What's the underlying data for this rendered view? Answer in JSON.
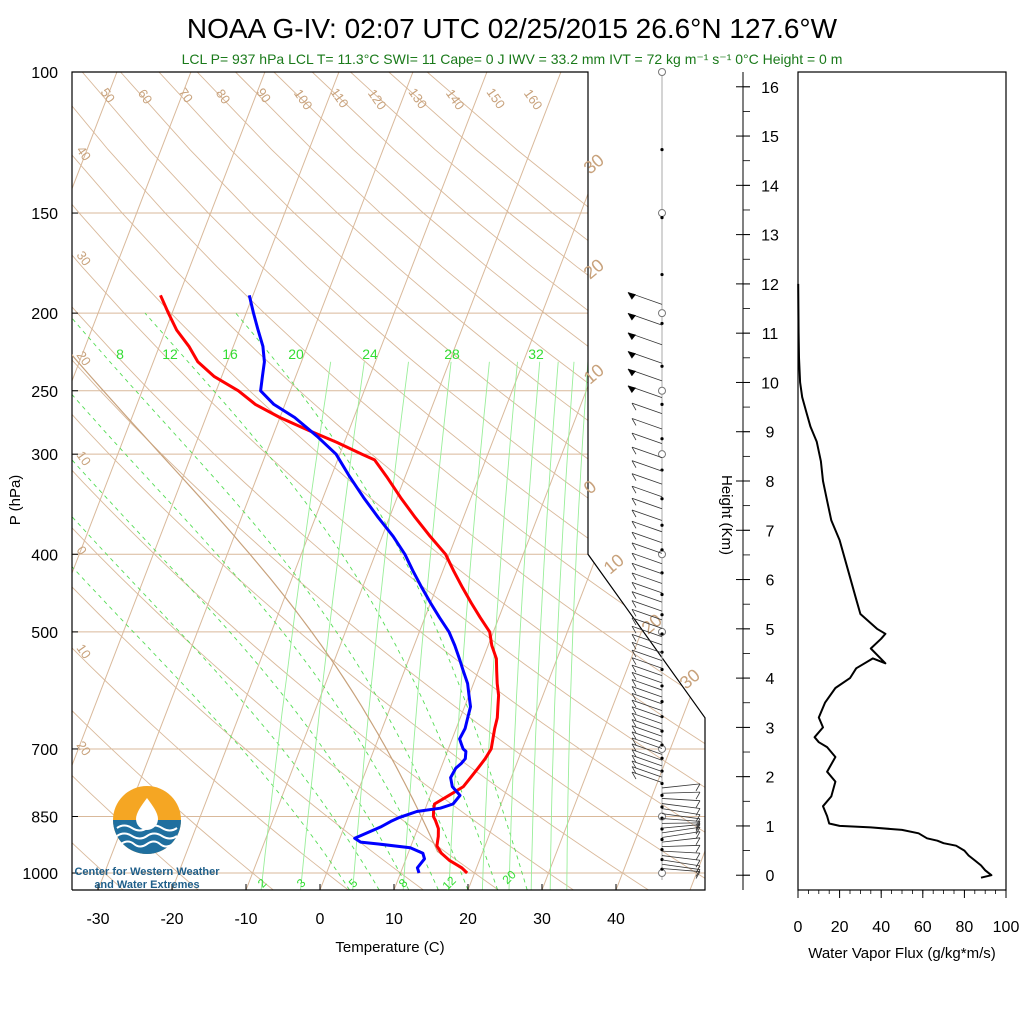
{
  "header": {
    "title": "NOAA G-IV: 02:07 UTC 02/25/2015  26.6°N 127.6°W",
    "subtitle": "LCL P= 937 hPa  LCL T= 11.3°C  SWI= 11  Cape= 0 J  IWV = 33.2 mm  IVT = 72 kg m⁻¹ s⁻¹  0°C Height = 0 m"
  },
  "logo": {
    "line1": "Center for Western Weather",
    "line2": "and Water Extremes",
    "colors": {
      "sun": "#f5a623",
      "water": "#1f6f9f"
    }
  },
  "chart_data": [
    {
      "type": "line",
      "name": "skew-t",
      "xlabel": "Temperature (C)",
      "ylabel": "P (hPa)",
      "x_ticks": [
        -30,
        -20,
        -10,
        0,
        10,
        20,
        30,
        40
      ],
      "y_ticks": [
        100,
        150,
        200,
        250,
        300,
        400,
        500,
        700,
        850,
        1000
      ],
      "ylim": [
        1050,
        100
      ],
      "y_scale": "log",
      "colors": {
        "temperature": "#ff0000",
        "dewpoint": "#0000ff",
        "isotherm": "#d9b99b",
        "mixing": "#66dd66"
      },
      "series": [
        {
          "name": "Temperature",
          "points": [
            [
              19.0,
              1000
            ],
            [
              18.0,
              985
            ],
            [
              16.0,
              965
            ],
            [
              14.5,
              945
            ],
            [
              13.5,
              925
            ],
            [
              13.2,
              900
            ],
            [
              12.8,
              880
            ],
            [
              12.0,
              860
            ],
            [
              11.5,
              850
            ],
            [
              11.2,
              835
            ],
            [
              11.0,
              820
            ],
            [
              12.5,
              800
            ],
            [
              14.0,
              780
            ],
            [
              14.5,
              760
            ],
            [
              15.0,
              740
            ],
            [
              15.5,
              720
            ],
            [
              15.8,
              700
            ],
            [
              15.5,
              680
            ],
            [
              15.2,
              660
            ],
            [
              15.0,
              640
            ],
            [
              14.5,
              620
            ],
            [
              14.0,
              600
            ],
            [
              13.2,
              580
            ],
            [
              12.5,
              560
            ],
            [
              11.8,
              540
            ],
            [
              10.5,
              520
            ],
            [
              9.5,
              500
            ],
            [
              7.5,
              480
            ],
            [
              5.5,
              460
            ],
            [
              3.5,
              440
            ],
            [
              1.5,
              420
            ],
            [
              -0.5,
              400
            ],
            [
              -3.5,
              380
            ],
            [
              -6.5,
              360
            ],
            [
              -9.5,
              340
            ],
            [
              -12.5,
              320
            ],
            [
              -15.0,
              305
            ],
            [
              -17.0,
              300
            ],
            [
              -21.0,
              290
            ],
            [
              -25.5,
              280
            ],
            [
              -30.0,
              270
            ],
            [
              -34.0,
              260
            ],
            [
              -37.0,
              250
            ],
            [
              -41.0,
              240
            ],
            [
              -44.0,
              230
            ],
            [
              -46.0,
              220
            ],
            [
              -48.5,
              210
            ],
            [
              -50.5,
              200
            ],
            [
              -52.5,
              190
            ]
          ]
        },
        {
          "name": "Dewpoint",
          "points": [
            [
              12.5,
              1000
            ],
            [
              12.0,
              985
            ],
            [
              12.5,
              960
            ],
            [
              12.0,
              945
            ],
            [
              10.0,
              930
            ],
            [
              5.5,
              920
            ],
            [
              3.0,
              915
            ],
            [
              2.0,
              905
            ],
            [
              3.0,
              895
            ],
            [
              4.0,
              885
            ],
            [
              5.0,
              875
            ],
            [
              6.0,
              862
            ],
            [
              7.0,
              852
            ],
            [
              8.0,
              845
            ],
            [
              9.0,
              838
            ],
            [
              12.0,
              830
            ],
            [
              13.5,
              820
            ],
            [
              14.0,
              800
            ],
            [
              12.5,
              780
            ],
            [
              11.8,
              760
            ],
            [
              12.0,
              740
            ],
            [
              12.5,
              730
            ],
            [
              12.8,
              720
            ],
            [
              12.5,
              705
            ],
            [
              12.0,
              700
            ],
            [
              11.5,
              690
            ],
            [
              11.0,
              680
            ],
            [
              11.2,
              660
            ],
            [
              11.0,
              640
            ],
            [
              10.8,
              620
            ],
            [
              10.0,
              600
            ],
            [
              9.2,
              580
            ],
            [
              8.0,
              560
            ],
            [
              6.8,
              540
            ],
            [
              5.5,
              520
            ],
            [
              4.0,
              500
            ],
            [
              2.0,
              480
            ],
            [
              0.0,
              460
            ],
            [
              -2.0,
              440
            ],
            [
              -4.0,
              420
            ],
            [
              -6.0,
              400
            ],
            [
              -8.5,
              380
            ],
            [
              -11.5,
              360
            ],
            [
              -14.5,
              340
            ],
            [
              -17.5,
              320
            ],
            [
              -20.5,
              300
            ],
            [
              -24.0,
              285
            ],
            [
              -28.0,
              270
            ],
            [
              -31.5,
              260
            ],
            [
              -34.0,
              250
            ],
            [
              -34.5,
              240
            ],
            [
              -35.0,
              230
            ],
            [
              -36.0,
              220
            ],
            [
              -37.5,
              210
            ],
            [
              -39.0,
              200
            ],
            [
              -40.5,
              190
            ]
          ]
        }
      ],
      "isotherm_labels": [
        "50",
        "60",
        "70",
        "80",
        "90",
        "100",
        "110",
        "120",
        "130",
        "140",
        "150",
        "160"
      ],
      "left_labels": [
        "40",
        "30",
        "20",
        "10",
        "0",
        "10",
        "20"
      ],
      "big_labels": [
        "30",
        "20",
        "10",
        "0",
        "10",
        "20",
        "30"
      ],
      "mixing_ratio_labels": [
        "8",
        "12",
        "16",
        "20",
        "24",
        "28",
        "32"
      ],
      "bottom_labels": [
        "2",
        "3",
        "5",
        "8",
        "12",
        "20"
      ]
    },
    {
      "type": "line",
      "name": "water-vapor-flux",
      "xlabel": "Water Vapor Flux (g/kg*m/s)",
      "ylabel": "Height (Km)",
      "x_ticks": [
        0,
        20,
        40,
        60,
        80,
        100
      ],
      "y_ticks": [
        0,
        1,
        2,
        3,
        4,
        5,
        6,
        7,
        8,
        9,
        10,
        11,
        12,
        13,
        14,
        15,
        16
      ],
      "xlim": [
        0,
        100
      ],
      "ylim": [
        -0.3,
        16.3
      ],
      "series": [
        {
          "name": "",
          "points": [
            [
              88,
              -0.05
            ],
            [
              93,
              0.0
            ],
            [
              90,
              0.1
            ],
            [
              88,
              0.2
            ],
            [
              85,
              0.3
            ],
            [
              82,
              0.4
            ],
            [
              80,
              0.5
            ],
            [
              76,
              0.6
            ],
            [
              70,
              0.65
            ],
            [
              67,
              0.7
            ],
            [
              62,
              0.75
            ],
            [
              58,
              0.85
            ],
            [
              50,
              0.92
            ],
            [
              35,
              0.97
            ],
            [
              20,
              1.0
            ],
            [
              15,
              1.05
            ],
            [
              14,
              1.2
            ],
            [
              12,
              1.4
            ],
            [
              16,
              1.6
            ],
            [
              18,
              1.9
            ],
            [
              14,
              2.1
            ],
            [
              18,
              2.4
            ],
            [
              14,
              2.6
            ],
            [
              10,
              2.7
            ],
            [
              8,
              2.8
            ],
            [
              12,
              3.0
            ],
            [
              10,
              3.2
            ],
            [
              13,
              3.5
            ],
            [
              18,
              3.8
            ],
            [
              25,
              4.0
            ],
            [
              28,
              4.2
            ],
            [
              36,
              4.4
            ],
            [
              42,
              4.3
            ],
            [
              35,
              4.6
            ],
            [
              40,
              4.8
            ],
            [
              42,
              4.9
            ],
            [
              38,
              5.0
            ],
            [
              30,
              5.3
            ],
            [
              28,
              5.6
            ],
            [
              24,
              6.2
            ],
            [
              20,
              6.8
            ],
            [
              16,
              7.2
            ],
            [
              14,
              7.6
            ],
            [
              12,
              8.0
            ],
            [
              11,
              8.4
            ],
            [
              9,
              8.8
            ],
            [
              6,
              9.1
            ],
            [
              4,
              9.4
            ],
            [
              2,
              9.7
            ],
            [
              1,
              10.0
            ],
            [
              0.5,
              10.5
            ],
            [
              0.3,
              11.0
            ],
            [
              0.2,
              11.5
            ],
            [
              0.1,
              12.0
            ]
          ]
        }
      ]
    }
  ]
}
